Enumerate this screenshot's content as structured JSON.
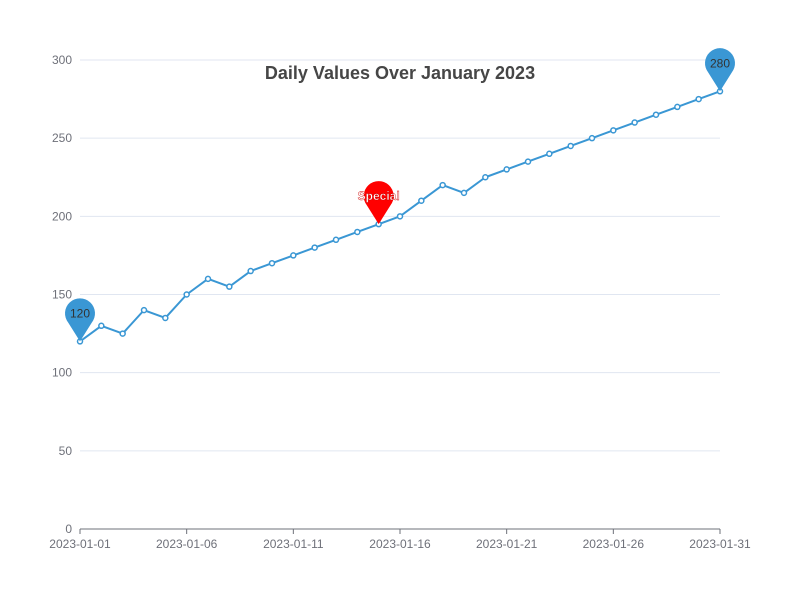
{
  "chart_data": {
    "type": "line",
    "title": "Daily Values Over January 2023",
    "xlabel": "",
    "ylabel": "",
    "x": [
      "2023-01-01",
      "2023-01-02",
      "2023-01-03",
      "2023-01-04",
      "2023-01-05",
      "2023-01-06",
      "2023-01-07",
      "2023-01-08",
      "2023-01-09",
      "2023-01-10",
      "2023-01-11",
      "2023-01-12",
      "2023-01-13",
      "2023-01-14",
      "2023-01-15",
      "2023-01-16",
      "2023-01-17",
      "2023-01-18",
      "2023-01-19",
      "2023-01-20",
      "2023-01-21",
      "2023-01-22",
      "2023-01-23",
      "2023-01-24",
      "2023-01-25",
      "2023-01-26",
      "2023-01-27",
      "2023-01-28",
      "2023-01-29",
      "2023-01-30",
      "2023-01-31"
    ],
    "series": [
      {
        "values": [
          120,
          130,
          125,
          140,
          135,
          150,
          160,
          155,
          165,
          170,
          175,
          180,
          185,
          190,
          195,
          200,
          210,
          220,
          215,
          225,
          230,
          235,
          240,
          245,
          250,
          255,
          260,
          265,
          270,
          275,
          280
        ],
        "color": "#3a97d4"
      }
    ],
    "xticks": [
      "2023-01-01",
      "2023-01-06",
      "2023-01-11",
      "2023-01-16",
      "2023-01-21",
      "2023-01-26",
      "2023-01-31"
    ],
    "yticks": [
      0,
      50,
      100,
      150,
      200,
      250,
      300
    ],
    "ylim": [
      0,
      300
    ],
    "grid": "horizontal",
    "markers": [
      {
        "x": "2023-01-01",
        "value": 120,
        "label": "120",
        "color": "#3a97d4",
        "text_color": "#333333"
      },
      {
        "x": "2023-01-15",
        "value": 195,
        "label": "Special",
        "color": "#ff0000",
        "text_color": "#ffffff"
      },
      {
        "x": "2023-01-31",
        "value": 280,
        "label": "280",
        "color": "#3a97d4",
        "text_color": "#333333"
      }
    ]
  }
}
